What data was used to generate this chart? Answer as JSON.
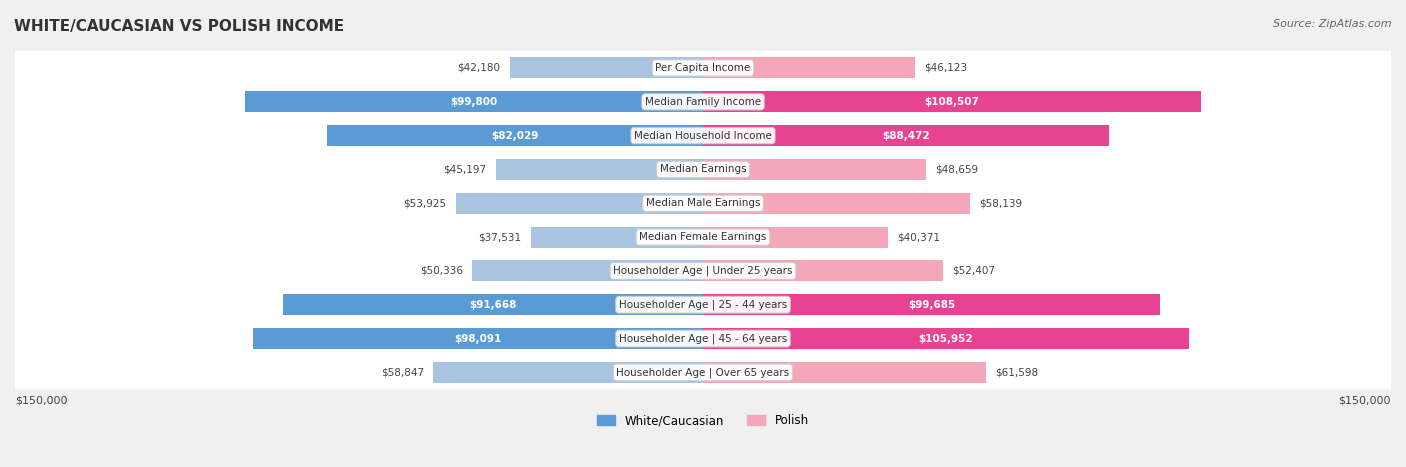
{
  "title": "WHITE/CAUCASIAN VS POLISH INCOME",
  "source": "Source: ZipAtlas.com",
  "categories": [
    "Per Capita Income",
    "Median Family Income",
    "Median Household Income",
    "Median Earnings",
    "Median Male Earnings",
    "Median Female Earnings",
    "Householder Age | Under 25 years",
    "Householder Age | 25 - 44 years",
    "Householder Age | 45 - 64 years",
    "Householder Age | Over 65 years"
  ],
  "white_values": [
    42180,
    99800,
    82029,
    45197,
    53925,
    37531,
    50336,
    91668,
    98091,
    58847
  ],
  "polish_values": [
    46123,
    108507,
    88472,
    48659,
    58139,
    40371,
    52407,
    99685,
    105952,
    61598
  ],
  "white_labels": [
    "$42,180",
    "$99,800",
    "$82,029",
    "$45,197",
    "$53,925",
    "$37,531",
    "$50,336",
    "$91,668",
    "$98,091",
    "$58,847"
  ],
  "polish_labels": [
    "$46,123",
    "$108,507",
    "$88,472",
    "$48,659",
    "$58,139",
    "$40,371",
    "$52,407",
    "$99,685",
    "$105,952",
    "$61,598"
  ],
  "white_color_light": "#a8c4e0",
  "white_color_dark": "#5b9bd5",
  "polish_color_light": "#f4a7b9",
  "polish_color_dark": "#e84393",
  "axis_limit": 150000,
  "background_color": "#f0f0f0",
  "row_bg_color": "#f9f9f9",
  "white_text_threshold": 70000,
  "polish_text_threshold": 70000,
  "legend_white": "White/Caucasian",
  "legend_polish": "Polish",
  "xlabel_left": "$150,000",
  "xlabel_right": "$150,000"
}
